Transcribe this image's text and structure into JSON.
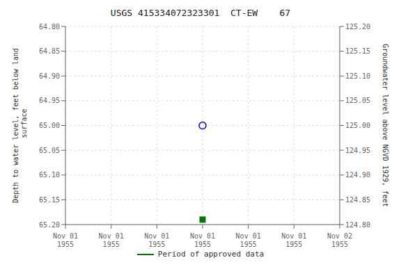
{
  "chart_data": {
    "type": "scatter",
    "title": "USGS 415334072323301  CT-EW    67",
    "ylabel": "Depth to water level, feet below land\n surface",
    "y2label": "Groundwater level above NGVD 1929, feet",
    "categories": [
      "Nov 01\n1955",
      "Nov 01\n1955",
      "Nov 01\n1955",
      "Nov 01\n1955",
      "Nov 01\n1955",
      "Nov 01\n1955",
      "Nov 02\n1955"
    ],
    "series": [
      {
        "color": "#0000cc",
        "marker": "open_circle",
        "values": [
          null,
          null,
          null,
          65.0,
          null,
          null,
          null
        ]
      },
      {
        "name": "Period of approved data",
        "color": "#007700",
        "marker": "square",
        "values": [
          null,
          null,
          null,
          65.19,
          null,
          null,
          null
        ]
      }
    ],
    "ylim": [
      65.2,
      64.8
    ],
    "yticks": [
      {
        "value": 64.8,
        "label": "64.80"
      },
      {
        "value": 64.85,
        "label": "64.85"
      },
      {
        "value": 64.9,
        "label": "64.90"
      },
      {
        "value": 64.95,
        "label": "64.95"
      },
      {
        "value": 65.0,
        "label": "65.00"
      },
      {
        "value": 65.05,
        "label": "65.05"
      },
      {
        "value": 65.1,
        "label": "65.10"
      },
      {
        "value": 65.15,
        "label": "65.15"
      },
      {
        "value": 65.2,
        "label": "65.20"
      }
    ],
    "y2lim": [
      124.8,
      125.2
    ],
    "y2ticks": [
      {
        "value": 125.2,
        "label": "125.20"
      },
      {
        "value": 125.15,
        "label": "125.15"
      },
      {
        "value": 125.1,
        "label": "125.10"
      },
      {
        "value": 125.05,
        "label": "125.05"
      },
      {
        "value": 125.0,
        "label": "125.00"
      },
      {
        "value": 124.95,
        "label": "124.95"
      },
      {
        "value": 124.9,
        "label": "124.90"
      },
      {
        "value": 124.85,
        "label": "124.85"
      },
      {
        "value": 124.8,
        "label": "124.80"
      }
    ],
    "grid": true,
    "legend": "bottom"
  }
}
